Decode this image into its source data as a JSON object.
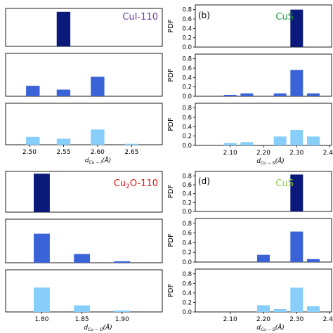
{
  "chart_data": [
    {
      "type": "bar",
      "panel_label": "",
      "title": "CuI-110",
      "title_color": "#6a3d9a",
      "xlabel": "d_Cu-I(Å)",
      "xlabel_main": "d",
      "xlabel_sub": "Cu − I",
      "xlabel_rest": "(Å)",
      "ylabel": "",
      "xlim": [
        2.465,
        2.695
      ],
      "xticks": [
        2.5,
        2.55,
        2.6,
        2.65
      ],
      "xtick_labels": [
        "2.50",
        "2.55",
        "2.60",
        "2.65"
      ],
      "ylim": [
        0,
        0.9
      ],
      "yticks": [],
      "ytick_labels": [],
      "bar_width": 0.02,
      "rows": [
        {
          "color": "#0b1a7a",
          "bars": [
            {
              "x": 2.55,
              "value": 0.82
            }
          ]
        },
        {
          "color": "#3b63d8",
          "bars": [
            {
              "x": 2.505,
              "value": 0.22
            },
            {
              "x": 2.55,
              "value": 0.14
            },
            {
              "x": 2.6,
              "value": 0.41
            }
          ]
        },
        {
          "color": "#87cefa",
          "bars": [
            {
              "x": 2.505,
              "value": 0.17
            },
            {
              "x": 2.55,
              "value": 0.13
            },
            {
              "x": 2.6,
              "value": 0.33
            },
            {
              "x": 2.65,
              "value": 0.02
            }
          ]
        }
      ]
    },
    {
      "type": "bar",
      "panel_label": "(b)",
      "title": "CuS",
      "title_color": "#1a9641",
      "xlabel": "d_Cu-S(Å)",
      "xlabel_main": "d",
      "xlabel_sub": "Cu − S",
      "xlabel_rest": "(Å)",
      "ylabel": "PDF",
      "xlim": [
        1.995,
        2.405
      ],
      "xticks": [
        2.1,
        2.2,
        2.3,
        2.4
      ],
      "xtick_labels": [
        "2.10",
        "2.20",
        "2.30",
        "2.40"
      ],
      "ylim": [
        0,
        0.9
      ],
      "yticks": [
        0.0,
        0.2,
        0.4,
        0.6,
        0.8
      ],
      "ytick_labels": [
        "0.0",
        "0.2",
        "0.4",
        "0.6",
        "0.8"
      ],
      "bar_width": 0.038,
      "rows": [
        {
          "color": "#0b1a7a",
          "bars": [
            {
              "x": 2.3,
              "value": 0.8
            }
          ]
        },
        {
          "color": "#3b63d8",
          "bars": [
            {
              "x": 2.1,
              "value": 0.03
            },
            {
              "x": 2.15,
              "value": 0.06
            },
            {
              "x": 2.25,
              "value": 0.06
            },
            {
              "x": 2.3,
              "value": 0.56
            },
            {
              "x": 2.35,
              "value": 0.06
            }
          ]
        },
        {
          "color": "#87cefa",
          "bars": [
            {
              "x": 2.1,
              "value": 0.05
            },
            {
              "x": 2.15,
              "value": 0.07
            },
            {
              "x": 2.25,
              "value": 0.19
            },
            {
              "x": 2.3,
              "value": 0.33
            },
            {
              "x": 2.35,
              "value": 0.19
            }
          ]
        }
      ]
    },
    {
      "type": "bar",
      "panel_label": "",
      "title": "Cu2O-110",
      "title_main": "Cu",
      "title_sub": "2",
      "title_rest": "O-110",
      "title_color": "#d7191c",
      "xlabel": "d_Cu-O(Å)",
      "xlabel_main": "d",
      "xlabel_sub": "Cu − O",
      "xlabel_rest": "(Å)",
      "ylabel": "",
      "xlim": [
        1.755,
        1.95
      ],
      "xticks": [
        1.8,
        1.85,
        1.9
      ],
      "xtick_labels": [
        "1.80",
        "1.85",
        "1.90"
      ],
      "ylim": [
        0,
        0.9
      ],
      "yticks": [],
      "ytick_labels": [],
      "bar_width": 0.02,
      "rows": [
        {
          "color": "#0b1a7a",
          "bars": [
            {
              "x": 1.8,
              "value": 0.85
            }
          ]
        },
        {
          "color": "#3b63d8",
          "bars": [
            {
              "x": 1.8,
              "value": 0.6
            },
            {
              "x": 1.85,
              "value": 0.18
            },
            {
              "x": 1.9,
              "value": 0.03
            }
          ]
        },
        {
          "color": "#87cefa",
          "bars": [
            {
              "x": 1.8,
              "value": 0.52
            },
            {
              "x": 1.85,
              "value": 0.14
            },
            {
              "x": 1.9,
              "value": 0.03
            }
          ]
        }
      ]
    },
    {
      "type": "bar",
      "panel_label": "(d)",
      "title": "CuS",
      "title_color": "#8ccc3c",
      "xlabel": "d_Cu-S(Å)",
      "xlabel_main": "d",
      "xlabel_sub": "Cu − S",
      "xlabel_rest": "(Å)",
      "ylabel": "PDF",
      "xlim": [
        1.995,
        2.405
      ],
      "xticks": [
        2.1,
        2.2,
        2.3,
        2.4
      ],
      "xtick_labels": [
        "2.10",
        "2.20",
        "2.30",
        "2.40"
      ],
      "ylim": [
        0,
        0.9
      ],
      "yticks": [
        0.0,
        0.2,
        0.4,
        0.6,
        0.8
      ],
      "ytick_labels": [
        "0.0",
        "0.2",
        "0.4",
        "0.6",
        "0.8"
      ],
      "bar_width": 0.038,
      "rows": [
        {
          "color": "#0b1a7a",
          "bars": [
            {
              "x": 2.3,
              "value": 0.83
            }
          ]
        },
        {
          "color": "#3b63d8",
          "bars": [
            {
              "x": 2.2,
              "value": 0.15
            },
            {
              "x": 2.3,
              "value": 0.63
            },
            {
              "x": 2.35,
              "value": 0.06
            }
          ]
        },
        {
          "color": "#87cefa",
          "bars": [
            {
              "x": 2.2,
              "value": 0.14
            },
            {
              "x": 2.25,
              "value": 0.06
            },
            {
              "x": 2.3,
              "value": 0.51
            },
            {
              "x": 2.35,
              "value": 0.12
            }
          ]
        }
      ]
    }
  ]
}
